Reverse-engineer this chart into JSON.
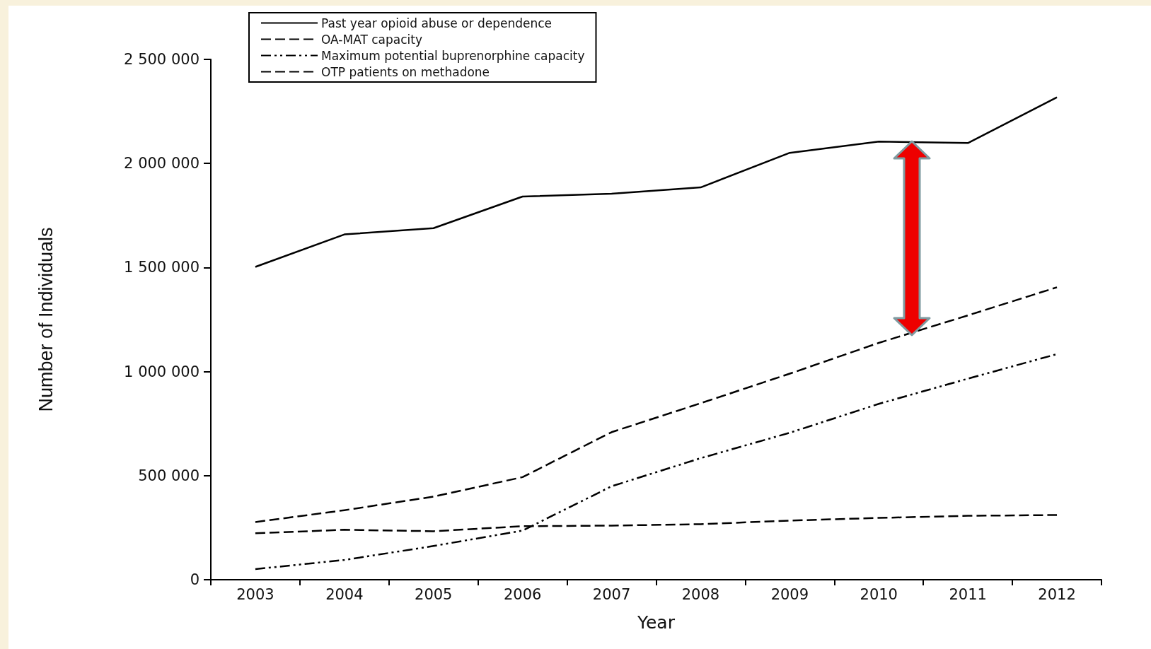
{
  "chart_data": {
    "type": "line",
    "xlabel": "Year",
    "ylabel": "Number of Individuals",
    "categories": [
      "2003",
      "2004",
      "2005",
      "2006",
      "2007",
      "2008",
      "2009",
      "2010",
      "2011",
      "2012"
    ],
    "series": [
      {
        "name": "Past year opioid abuse or dependence",
        "color": "#000000",
        "line_style": "solid",
        "values": [
          1503000,
          1659000,
          1689000,
          1841000,
          1855000,
          1885000,
          2051000,
          2105000,
          2098000,
          2318000
        ]
      },
      {
        "name": "OA-MAT capacity",
        "color": "#000000",
        "line_style": "dashed",
        "values": [
          277000,
          334000,
          399000,
          493000,
          709000,
          848000,
          990000,
          1138000,
          1270000,
          1405000
        ]
      },
      {
        "name": "Maximum potential buprenorphine capacity",
        "color": "#000000",
        "line_style": "dashdot",
        "values": [
          51000,
          95000,
          162000,
          236000,
          449000,
          584000,
          706000,
          845000,
          966000,
          1084000
        ]
      },
      {
        "name": "OTP patients on methadone",
        "color": "#000000",
        "line_style": "dashed",
        "values": [
          223000,
          240000,
          233000,
          257000,
          260000,
          267000,
          284000,
          297000,
          307000,
          311000
        ]
      }
    ],
    "ylim": [
      0,
      2500000
    ],
    "yticks": [
      0,
      {
        "value": 500000,
        "label": "500 000"
      },
      {
        "value": 1000000,
        "label": "1 000 000"
      },
      {
        "value": 1500000,
        "label": "1 500 000"
      },
      {
        "value": 2000000,
        "label": "2 000 000"
      },
      {
        "value": 2500000,
        "label": "2 500 000"
      }
    ],
    "grid": false,
    "legend": "top",
    "marker": "none"
  }
}
